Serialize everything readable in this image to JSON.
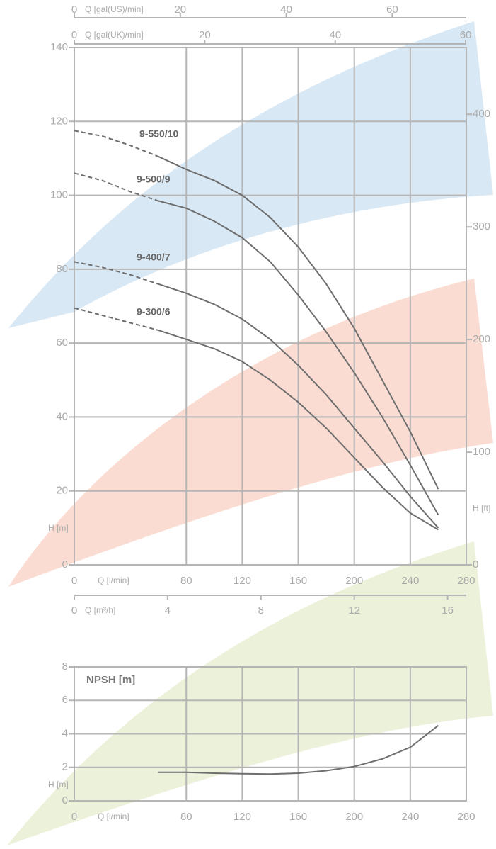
{
  "chart_data": [
    {
      "type": "line",
      "xlabel": "Q [l/min]",
      "ylabel": "H [m]",
      "y2label": "H [ft]",
      "xlim": [
        0,
        280
      ],
      "xticks": [
        0,
        80,
        120,
        160,
        200,
        240,
        280
      ],
      "ylim": [
        0,
        140
      ],
      "yticks": [
        0,
        20,
        40,
        60,
        80,
        100,
        120,
        140
      ],
      "y2lim": [
        0,
        459.3
      ],
      "y2ticks": [
        0,
        100,
        200,
        300,
        400
      ],
      "top_axes": [
        {
          "label": "Q [gal(US)/min]",
          "xlim": [
            0,
            73.97
          ],
          "xticks": [
            0,
            20,
            40,
            60
          ]
        },
        {
          "label": "Q [gal(UK)/min]",
          "xlim": [
            0,
            60.1
          ],
          "xticks": [
            0,
            20,
            40,
            60
          ]
        }
      ],
      "bottom_axes": [
        {
          "label": "Q [m³/h]",
          "xlim": [
            0,
            16.8
          ],
          "xticks": [
            0,
            4,
            8,
            12,
            16
          ]
        }
      ],
      "grid": true,
      "x": [
        0,
        20,
        40,
        60,
        80,
        100,
        120,
        140,
        160,
        180,
        200,
        220,
        240,
        260
      ],
      "series": [
        {
          "name": "9-550/10",
          "color": "#6e6e6e",
          "dashed_values": [
            117.5,
            116,
            113.5,
            110.5,
            null,
            null,
            null,
            null,
            null,
            null,
            null,
            null,
            null,
            null
          ],
          "values": [
            null,
            null,
            null,
            110.5,
            107,
            104,
            100,
            94,
            86,
            76,
            64,
            50,
            36,
            20.5
          ]
        },
        {
          "name": "9-500/9",
          "color": "#6e6e6e",
          "dashed_values": [
            106,
            104,
            101,
            98.5,
            null,
            null,
            null,
            null,
            null,
            null,
            null,
            null,
            null,
            null
          ],
          "values": [
            null,
            null,
            null,
            98.5,
            96.5,
            93,
            88.5,
            82,
            73,
            63,
            52,
            40,
            27,
            13.5
          ]
        },
        {
          "name": "9-400/7",
          "color": "#6e6e6e",
          "dashed_values": [
            82,
            80.5,
            78.5,
            76,
            null,
            null,
            null,
            null,
            null,
            null,
            null,
            null,
            null,
            null
          ],
          "values": [
            null,
            null,
            null,
            76,
            73.5,
            70.5,
            66.5,
            61,
            54,
            46,
            37,
            28,
            18.5,
            10
          ]
        },
        {
          "name": "9-300/6",
          "color": "#6e6e6e",
          "dashed_values": [
            69.5,
            67.5,
            65.5,
            63.5,
            null,
            null,
            null,
            null,
            null,
            null,
            null,
            null,
            null,
            null
          ],
          "values": [
            null,
            null,
            null,
            63.5,
            61,
            58.5,
            55,
            50,
            44,
            37,
            29,
            21,
            14,
            9.5
          ]
        }
      ]
    },
    {
      "type": "line",
      "title": "NPSH [m]",
      "xlabel": "Q [l/min]",
      "ylabel": "H [m]",
      "xlim": [
        0,
        280
      ],
      "xticks": [
        0,
        80,
        120,
        160,
        200,
        240,
        280
      ],
      "ylim": [
        0,
        8
      ],
      "yticks": [
        0,
        2,
        4,
        6,
        8
      ],
      "grid": true,
      "x": [
        60,
        80,
        100,
        120,
        140,
        160,
        180,
        200,
        220,
        240,
        260
      ],
      "series": [
        {
          "color": "#6e6e6e",
          "values": [
            1.7,
            1.7,
            1.65,
            1.62,
            1.6,
            1.65,
            1.8,
            2.05,
            2.5,
            3.2,
            4.5
          ]
        }
      ]
    }
  ]
}
